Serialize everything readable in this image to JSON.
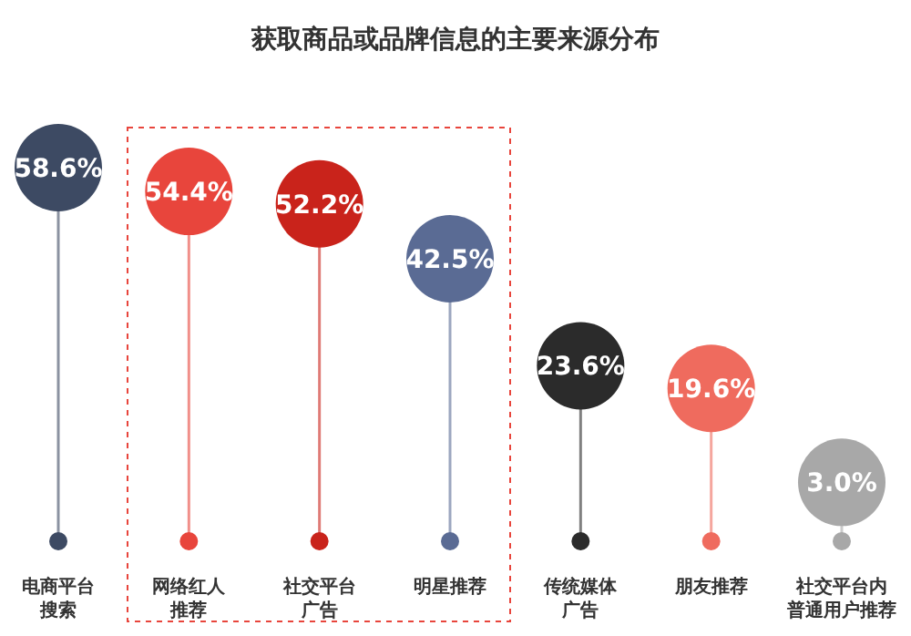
{
  "chart_data": {
    "type": "lollipop",
    "title": "获取商品或品牌信息的主要来源分布",
    "categories": [
      "电商平台搜索",
      "网络红人推荐",
      "社交平台广告",
      "明星推荐",
      "传统媒体广告",
      "朋友推荐",
      "社交平台内普通用户推荐"
    ],
    "values": [
      58.6,
      54.4,
      52.2,
      42.5,
      23.6,
      19.6,
      3.0
    ],
    "value_labels": [
      "58.6%",
      "54.4%",
      "52.2%",
      "42.5%",
      "23.6%",
      "19.6%",
      "3.0%"
    ],
    "colors": [
      "#3d4a63",
      "#e8453c",
      "#c9231b",
      "#5a6b94",
      "#2b2b2b",
      "#ef6b5e",
      "#a8a8a8"
    ]
  }
}
